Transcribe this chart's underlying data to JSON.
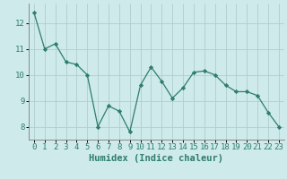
{
  "x": [
    0,
    1,
    2,
    3,
    4,
    5,
    6,
    7,
    8,
    9,
    10,
    11,
    12,
    13,
    14,
    15,
    16,
    17,
    18,
    19,
    20,
    21,
    22,
    23
  ],
  "y": [
    12.4,
    11.0,
    11.2,
    10.5,
    10.4,
    10.0,
    8.0,
    8.8,
    8.6,
    7.8,
    9.6,
    10.3,
    9.75,
    9.1,
    9.5,
    10.1,
    10.15,
    10.0,
    9.6,
    9.35,
    9.35,
    9.2,
    8.55,
    8.0
  ],
  "line_color": "#2e7d6e",
  "marker": "D",
  "marker_size": 2.2,
  "bg_color": "#ceeaea",
  "grid_color": "#b0cece",
  "xlabel": "Humidex (Indice chaleur)",
  "xlim": [
    -0.5,
    23.5
  ],
  "ylim": [
    7.5,
    12.75
  ],
  "yticks": [
    8,
    9,
    10,
    11,
    12
  ],
  "xticks": [
    0,
    1,
    2,
    3,
    4,
    5,
    6,
    7,
    8,
    9,
    10,
    11,
    12,
    13,
    14,
    15,
    16,
    17,
    18,
    19,
    20,
    21,
    22,
    23
  ],
  "xlabel_fontsize": 7.5,
  "tick_fontsize": 6.5
}
